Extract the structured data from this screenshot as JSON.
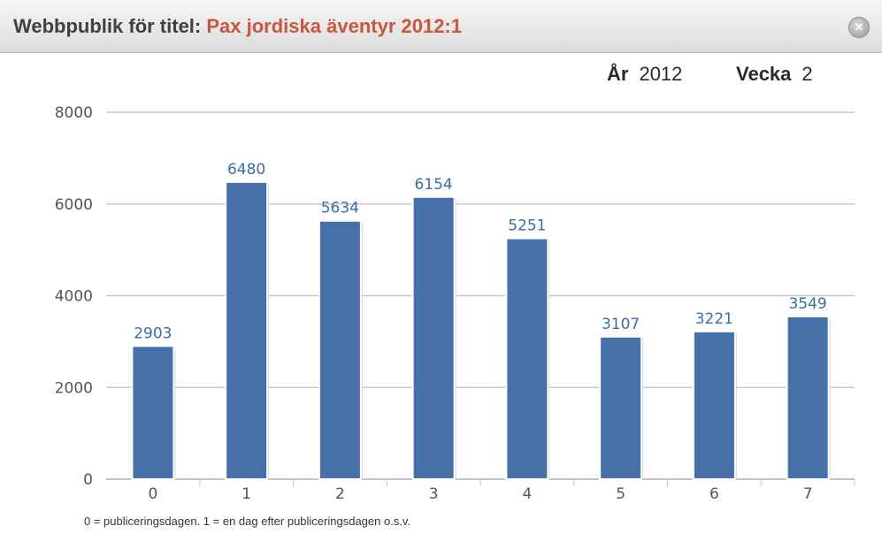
{
  "header": {
    "title_prefix": "Webbpublik för titel:",
    "title_name": "Pax jordiska äventyr 2012:1",
    "close_icon": "close-icon"
  },
  "period": {
    "year_label": "År",
    "year_value": "2012",
    "week_label": "Vecka",
    "week_value": "2"
  },
  "footnote": "0 = publiceringsdagen. 1 = en dag efter publiceringsdagen o.s.v.",
  "colors": {
    "bar": "#4571a8",
    "accent": "#c9573e",
    "grid": "#c8c8c8"
  },
  "chart_data": {
    "type": "bar",
    "categories": [
      "0",
      "1",
      "2",
      "3",
      "4",
      "5",
      "6",
      "7"
    ],
    "values": [
      2903,
      6480,
      5634,
      6154,
      5251,
      3107,
      3221,
      3549
    ],
    "title": "",
    "xlabel": "",
    "ylabel": "",
    "ylim": [
      0,
      8000
    ],
    "yticks": [
      "0",
      "2000",
      "4000",
      "6000",
      "8000"
    ],
    "grid": true,
    "data_labels": true
  }
}
